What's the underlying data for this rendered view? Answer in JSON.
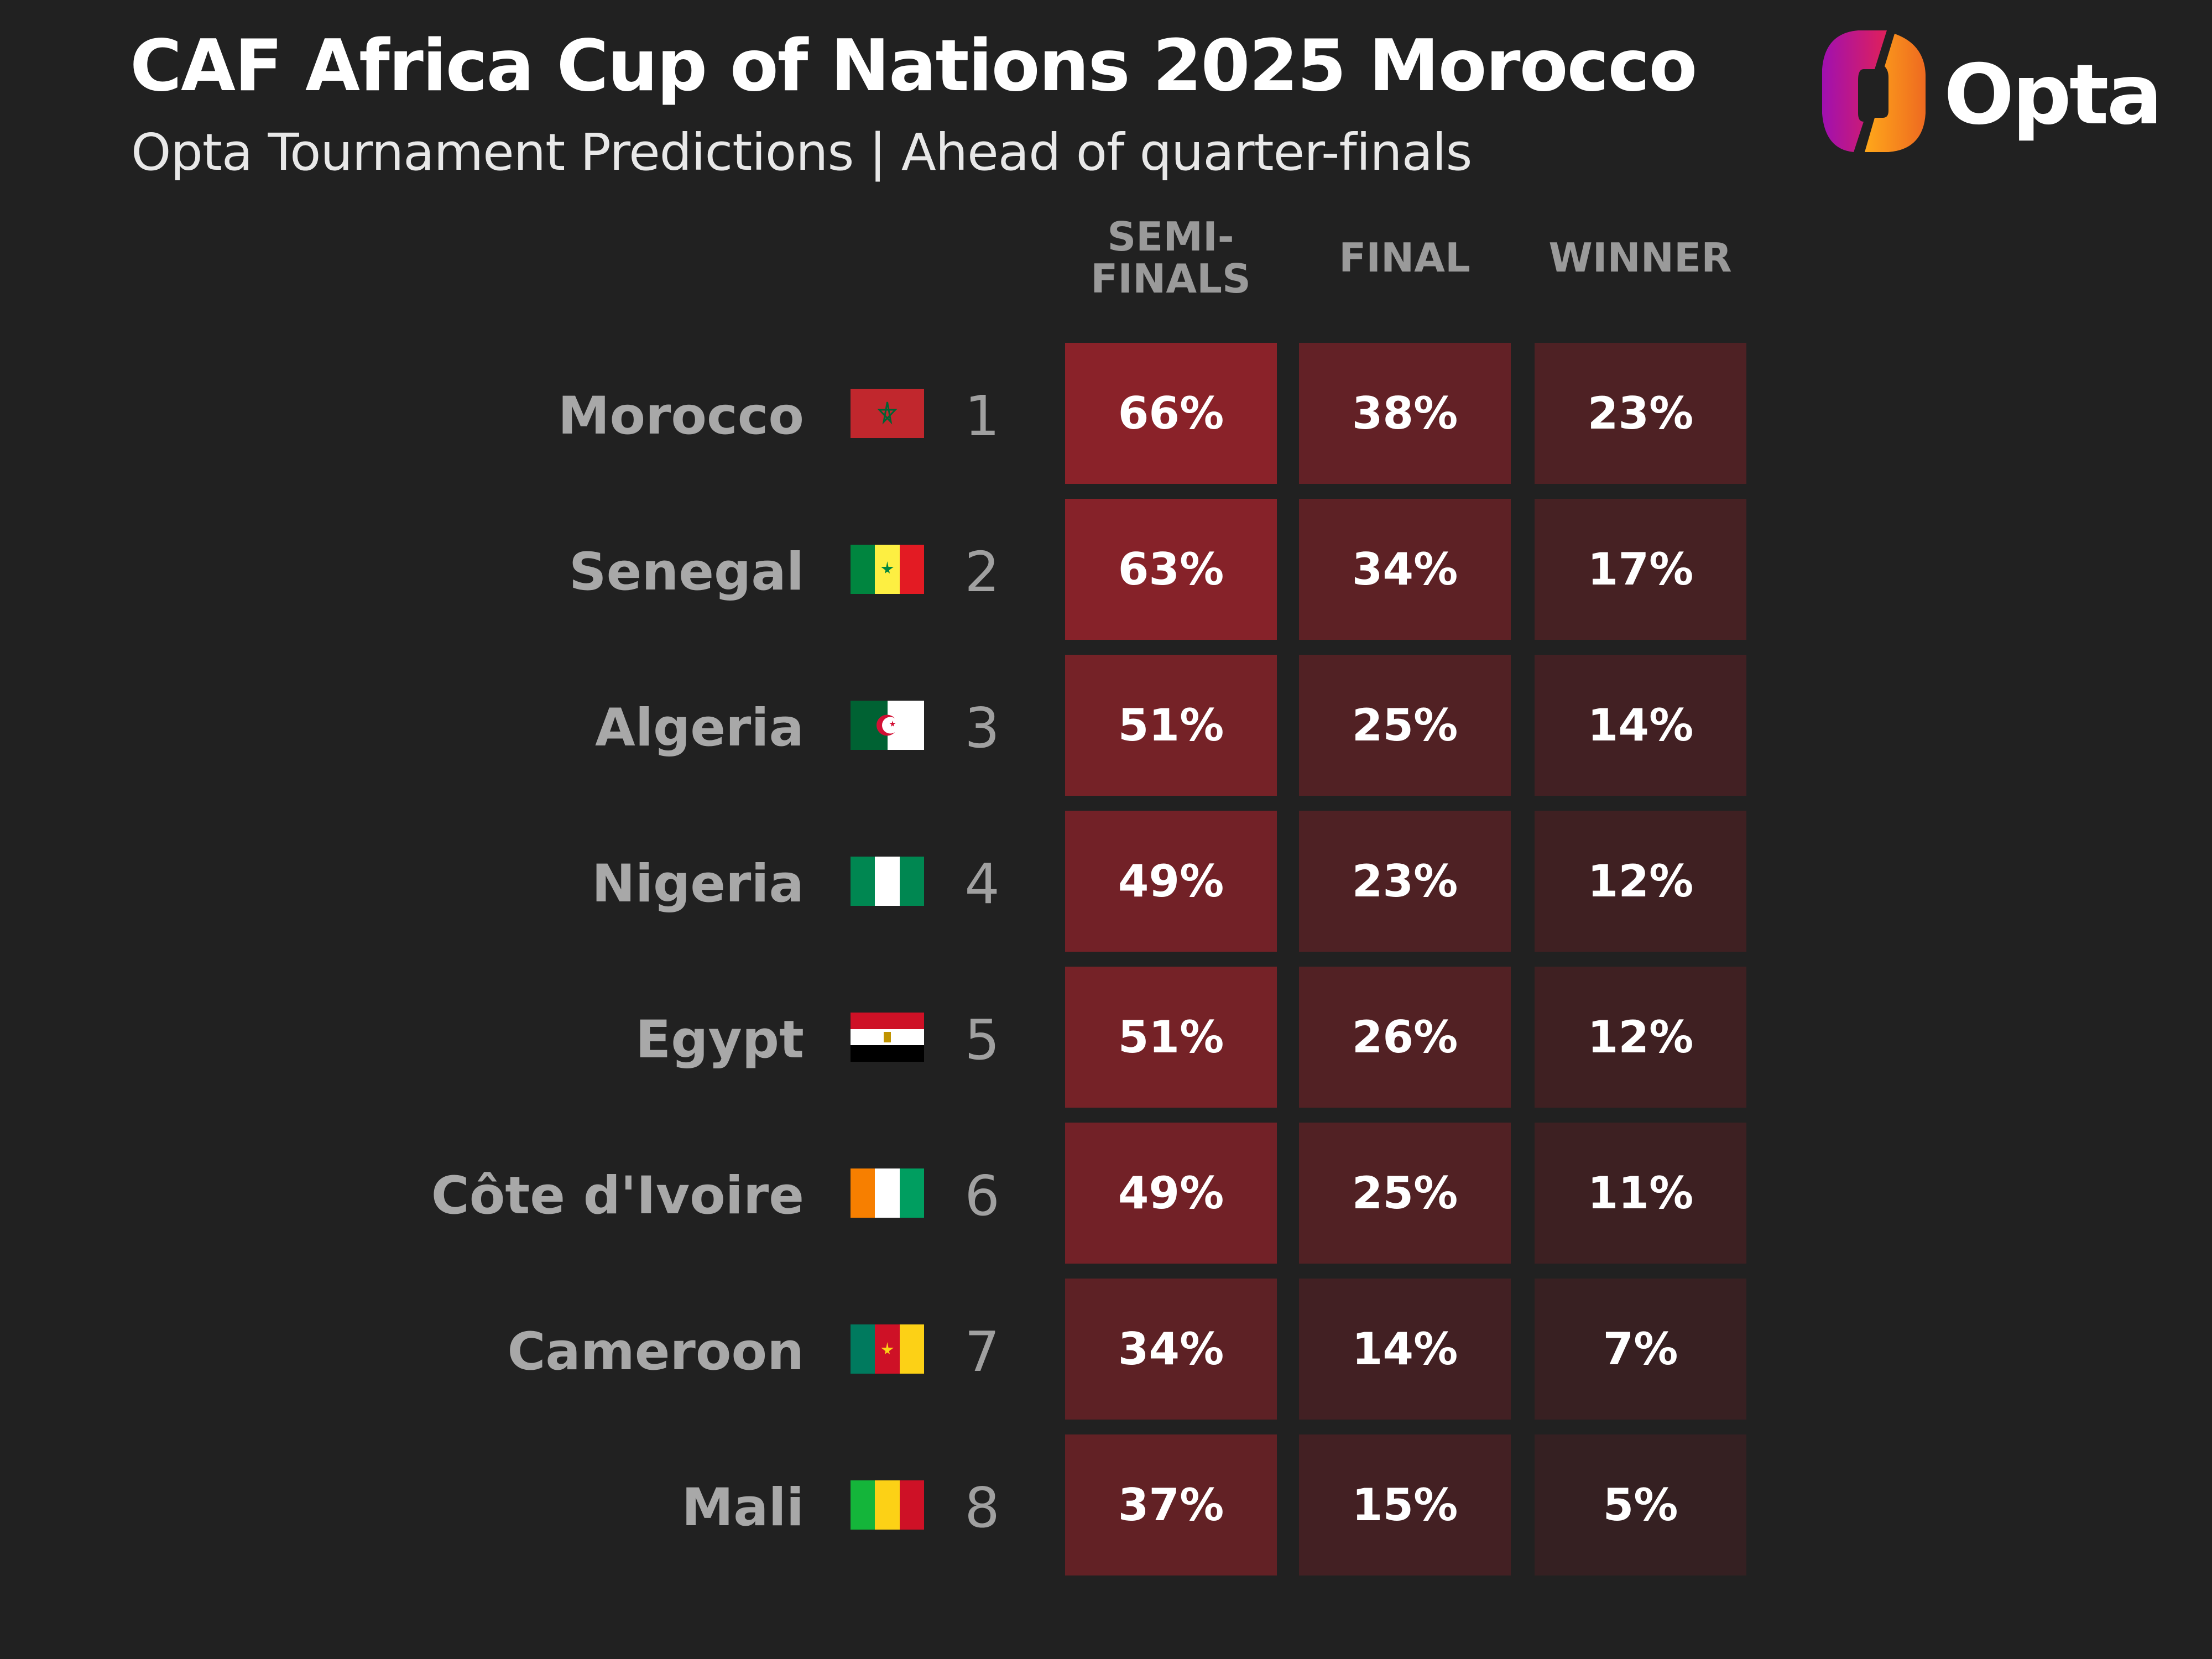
{
  "header": {
    "title": "CAF Africa Cup of Nations 2025 Morocco",
    "subtitle": "Opta Tournament Predictions | Ahead of quarter-finals",
    "logo_text": "Opta"
  },
  "colors": {
    "background": "#212121",
    "heat_low": "#2e2021",
    "heat_high": "#8a2229"
  },
  "chart_data": {
    "type": "table",
    "title": "CAF Africa Cup of Nations 2025 Morocco",
    "subtitle": "Opta Tournament Predictions | Ahead of quarter-finals",
    "columns": [
      "SEMI-\nFINALS",
      "FINAL",
      "WINNER"
    ],
    "rows": [
      {
        "country": "Morocco",
        "flag": "morocco-flag",
        "rank": "1",
        "values": [
          66,
          38,
          23
        ]
      },
      {
        "country": "Senegal",
        "flag": "senegal-flag",
        "rank": "2",
        "values": [
          63,
          34,
          17
        ]
      },
      {
        "country": "Algeria",
        "flag": "algeria-flag",
        "rank": "3",
        "values": [
          51,
          25,
          14
        ]
      },
      {
        "country": "Nigeria",
        "flag": "nigeria-flag",
        "rank": "4",
        "values": [
          49,
          23,
          12
        ]
      },
      {
        "country": "Egypt",
        "flag": "egypt-flag",
        "rank": "5",
        "values": [
          51,
          26,
          12
        ]
      },
      {
        "country": "Côte d'Ivoire",
        "flag": "cote-divoire-flag",
        "rank": "6",
        "values": [
          49,
          25,
          11
        ]
      },
      {
        "country": "Cameroon",
        "flag": "cameroon-flag",
        "rank": "7",
        "values": [
          34,
          14,
          7
        ]
      },
      {
        "country": "Mali",
        "flag": "mali-flag",
        "rank": "8",
        "values": [
          37,
          15,
          5
        ]
      }
    ],
    "unit": "%"
  }
}
